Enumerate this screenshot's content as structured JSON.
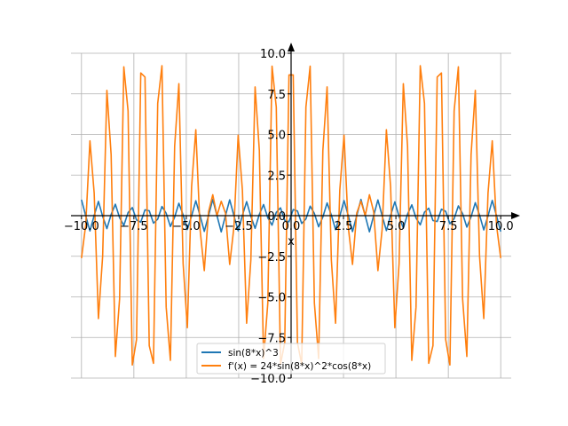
{
  "chart_data": {
    "type": "line",
    "title": "",
    "xlabel": "x",
    "ylabel": "",
    "xlim": [
      -10.5,
      10.5
    ],
    "ylim": [
      -10.0,
      10.0
    ],
    "x_ticks": [
      -10.0,
      -7.5,
      -5.0,
      -2.5,
      0.0,
      2.5,
      5.0,
      7.5,
      10.0
    ],
    "y_ticks": [
      -10.0,
      -7.5,
      -5.0,
      -2.5,
      0.0,
      2.5,
      5.0,
      7.5,
      10.0
    ],
    "x_tick_labels": [
      "−10.0",
      "−7.5",
      "−5.0",
      "−2.5",
      "0.0",
      "2.5",
      "5.0",
      "7.5",
      "10.0"
    ],
    "y_tick_labels": [
      "−10.0",
      "−7.5",
      "−5.0",
      "−2.5",
      "0.0",
      "2.5",
      "5.0",
      "7.5",
      "10.0"
    ],
    "grid": true,
    "legend_position": "bottom-center",
    "x_range": [
      -10,
      10
    ],
    "samples": 100,
    "series": [
      {
        "name": "sin(8*x)^3",
        "expression": "sin(8*x)^3",
        "color": "#1f77b4"
      },
      {
        "name": "f'(x) = 24*sin(8*x)^2*cos(8*x)",
        "expression": "24*sin(8*x)^2*cos(8*x)",
        "color": "#ff7f0e"
      }
    ]
  }
}
